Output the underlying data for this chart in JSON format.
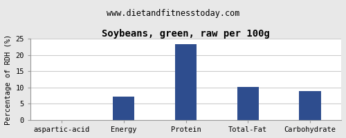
{
  "title": "Soybeans, green, raw per 100g",
  "subtitle": "www.dietandfitnesstoday.com",
  "categories": [
    "aspartic-acid",
    "Energy",
    "Protein",
    "Total-Fat",
    "Carbohydrate"
  ],
  "values": [
    0,
    7.3,
    23.3,
    10.1,
    9.0
  ],
  "bar_color": "#2e4d8e",
  "ylabel": "Percentage of RDH (%)",
  "ylim": [
    0,
    25
  ],
  "yticks": [
    0,
    5,
    10,
    15,
    20,
    25
  ],
  "background_color": "#e8e8e8",
  "plot_bg_color": "#ffffff",
  "title_fontsize": 10,
  "subtitle_fontsize": 8.5,
  "ylabel_fontsize": 7.5,
  "tick_fontsize": 7.5,
  "grid_color": "#cccccc"
}
